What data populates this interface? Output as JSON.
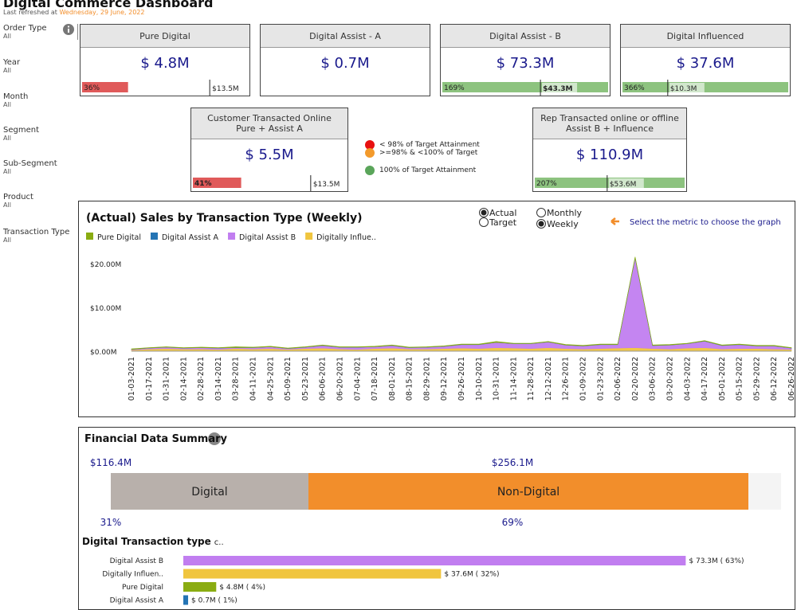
{
  "header": {
    "title": "Digital Commerce Dashboard",
    "refreshed_label": "Last refreshed at",
    "refreshed_date": "Wednesday, 29 June, 2022"
  },
  "filters": [
    {
      "label": "Order Type",
      "value": "All"
    },
    {
      "label": "Year",
      "value": "All"
    },
    {
      "label": "Month",
      "value": "All"
    },
    {
      "label": "Segment",
      "value": "All"
    },
    {
      "label": "Sub-Segment",
      "value": "All"
    },
    {
      "label": "Product",
      "value": "All"
    },
    {
      "label": "Transaction Type",
      "value": "All"
    }
  ],
  "kpi_cards": [
    {
      "title_lines": [
        "Pure Digital"
      ],
      "value": "$ 4.8M",
      "attainment": 36,
      "attainment_label": "36%",
      "target": "$13.5M",
      "color": "#e05a5a"
    },
    {
      "title_lines": [
        "Digital Assist - A"
      ],
      "value": "$ 0.7M"
    },
    {
      "title_lines": [
        "Digital Assist - B"
      ],
      "value": "$ 73.3M",
      "attainment": 169,
      "attainment_label": "169%",
      "target": "$43.3M",
      "target_bold": true,
      "color": "#8dc37f"
    },
    {
      "title_lines": [
        "Digital Influenced"
      ],
      "value": "$ 37.6M",
      "attainment": 366,
      "attainment_label": "366%",
      "target": "$10.3M",
      "color": "#8dc37f"
    },
    {
      "title_lines": [
        "Customer Transacted Online",
        "Pure + Assist A"
      ],
      "value": "$ 5.5M",
      "attainment": 41,
      "attainment_label": "41%",
      "target": "$13.5M",
      "color": "#e05a5a"
    },
    {
      "title_lines": [
        "Rep Transacted online or offline",
        "Assist  B + Influence"
      ],
      "value": "$ 110.9M",
      "attainment": 207,
      "attainment_label": "207%",
      "target": "$53.6M",
      "color": "#8dc37f"
    }
  ],
  "kpi_legend": [
    {
      "label": "< 98% of Target Attainment",
      "color": "#e81010"
    },
    {
      "label": ">=98% & <100% of Target",
      "color": "#f39a2c"
    },
    {
      "label": "100% of Target Attainment",
      "color": "#5aa55a"
    }
  ],
  "chart_data": {
    "type": "area",
    "stacked": true,
    "title": "(Actual) Sales by Transaction Type (Weekly)",
    "categories": [
      "01-03-2021",
      "01-17-2021",
      "01-31-2021",
      "02-14-2021",
      "02-28-2021",
      "03-14-2021",
      "03-28-2021",
      "04-11-2021",
      "04-25-2021",
      "05-09-2021",
      "05-23-2021",
      "06-06-2021",
      "06-20-2021",
      "07-04-2021",
      "07-18-2021",
      "08-01-2021",
      "08-15-2021",
      "08-29-2021",
      "09-12-2021",
      "09-26-2021",
      "10-10-2021",
      "10-31-2021",
      "11-14-2021",
      "11-28-2021",
      "12-12-2021",
      "12-26-2021",
      "01-09-2022",
      "01-23-2022",
      "02-06-2022",
      "02-20-2022",
      "03-06-2022",
      "03-20-2022",
      "04-03-2022",
      "04-17-2022",
      "05-01-2022",
      "05-15-2022",
      "05-29-2022",
      "06-12-2022",
      "06-26-2022"
    ],
    "series": [
      {
        "name": "Pure Digital",
        "color": "#8aac12",
        "values": [
          0.1,
          0.1,
          0.1,
          0.1,
          0.1,
          0.1,
          0.2,
          0.1,
          0.1,
          0.1,
          0.1,
          0.1,
          0.1,
          0.1,
          0.1,
          0.1,
          0.1,
          0.1,
          0.1,
          0.1,
          0.1,
          0.2,
          0.1,
          0.1,
          0.1,
          0.1,
          0.1,
          0.1,
          0.1,
          0.2,
          0.1,
          0.1,
          0.1,
          0.1,
          0.1,
          0.1,
          0.1,
          0.1,
          0.1
        ]
      },
      {
        "name": "Digital Assist A",
        "color": "#2474b4",
        "values": [
          0.02,
          0.02,
          0.02,
          0.02,
          0.02,
          0.02,
          0.02,
          0.02,
          0.02,
          0.02,
          0.02,
          0.02,
          0.02,
          0.02,
          0.02,
          0.02,
          0.02,
          0.02,
          0.02,
          0.02,
          0.02,
          0.02,
          0.02,
          0.02,
          0.02,
          0.02,
          0.02,
          0.02,
          0.02,
          0.02,
          0.02,
          0.02,
          0.02,
          0.02,
          0.02,
          0.02,
          0.02,
          0.02,
          0.02
        ]
      },
      {
        "name": "Digital Assist B",
        "color": "#c17ef0",
        "values": [
          0.1,
          0.2,
          0.3,
          0.2,
          0.3,
          0.3,
          0.2,
          0.3,
          0.4,
          0.2,
          0.3,
          0.6,
          0.4,
          0.5,
          0.4,
          0.6,
          0.3,
          0.4,
          0.5,
          0.8,
          0.9,
          1.2,
          1.0,
          1.1,
          1.3,
          0.8,
          0.7,
          0.9,
          0.8,
          20.5,
          0.7,
          0.9,
          1.0,
          1.5,
          0.8,
          0.9,
          0.6,
          0.7,
          0.3
        ]
      },
      {
        "name": "Digitally Influe..",
        "color": "#f0c53e",
        "values": [
          0.3,
          0.5,
          0.6,
          0.5,
          0.5,
          0.4,
          0.6,
          0.5,
          0.6,
          0.4,
          0.6,
          0.7,
          0.5,
          0.4,
          0.6,
          0.7,
          0.5,
          0.5,
          0.6,
          0.7,
          0.6,
          0.8,
          0.7,
          0.6,
          0.8,
          0.6,
          0.5,
          0.6,
          0.7,
          0.8,
          0.6,
          0.5,
          0.7,
          0.8,
          0.5,
          0.6,
          0.6,
          0.5,
          0.4
        ]
      }
    ],
    "ylim": [
      0,
      22
    ],
    "yticks": [
      {
        "value": 0,
        "label": "$0.00M"
      },
      {
        "value": 10,
        "label": "$10.00M"
      },
      {
        "value": 20,
        "label": "$20.00M"
      }
    ],
    "metric_options": [
      {
        "label": "Actual",
        "selected": true
      },
      {
        "label": "Target",
        "selected": false
      }
    ],
    "period_options": [
      {
        "label": "Monthly",
        "selected": false
      },
      {
        "label": "Weekly",
        "selected": true
      }
    ],
    "hint": "Select the metric to choose the graph"
  },
  "financial_summary": {
    "title": "Financial Data Summary",
    "segments": [
      {
        "name": "Digital",
        "amount": "$116.4M",
        "share": 31,
        "share_label": "31%",
        "color": "#b8b0ab"
      },
      {
        "name": "Non-Digital",
        "amount": "$256.1M",
        "share": 69,
        "share_label": "69%",
        "color": "#f28e2b"
      }
    ]
  },
  "transaction_types": {
    "title": "Digital Transaction type",
    "title_suffix": "c..",
    "categories": [
      "Digital Assist B",
      "Digitally Influen..",
      "Pure Digital",
      "Digital Assist A"
    ],
    "values": [
      73.3,
      37.6,
      4.8,
      0.7
    ],
    "value_labels": [
      "$ 73.3M ( 63%)",
      "$ 37.6M ( 32%)",
      "$ 4.8M ( 4%)",
      "$ 0.7M ( 1%)"
    ],
    "colors": [
      "#c17ef0",
      "#f0c53e",
      "#8aac12",
      "#2474b4"
    ]
  }
}
